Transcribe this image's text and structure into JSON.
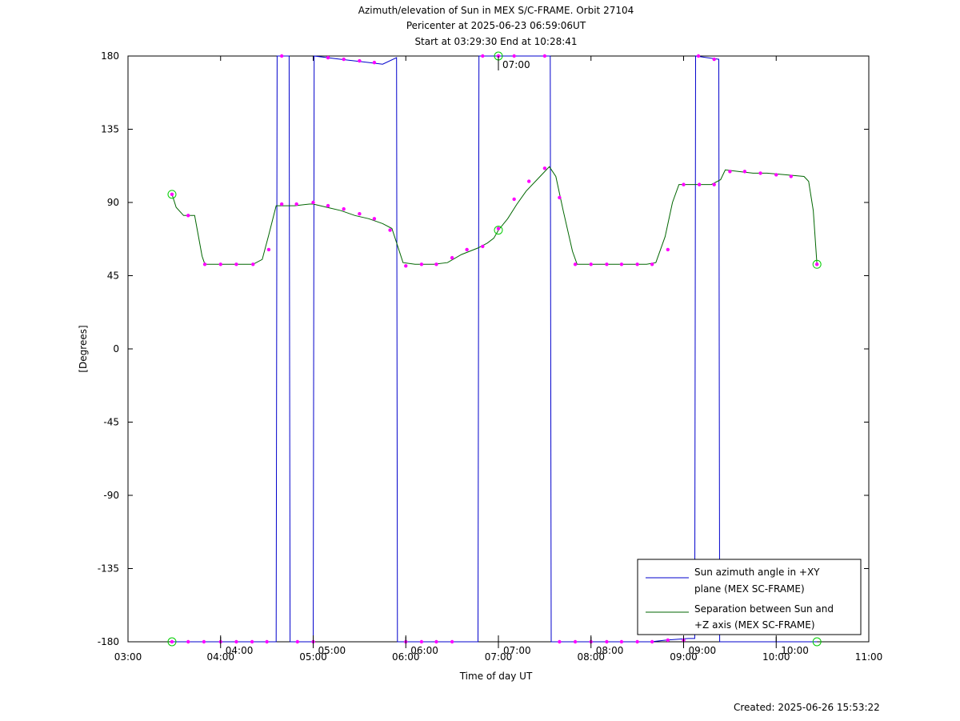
{
  "chart_data": {
    "type": "line",
    "title_lines": [
      "Azimuth/elevation of Sun in MEX S/C-FRAME.  Orbit 27104",
      "Pericenter at 2025-06-23 06:59:06UT",
      "Start at 03:29:30 End at 10:28:41"
    ],
    "xlabel": "Time of day UT",
    "ylabel": "[Degrees]",
    "x_range_hours": [
      3.0,
      11.0
    ],
    "y_range": [
      -180,
      180
    ],
    "x_tick_labels": [
      "03:00",
      "04:00",
      "05:00",
      "06:00",
      "07:00",
      "08:00",
      "09:00",
      "10:00",
      "11:00"
    ],
    "y_ticks": [
      180,
      135,
      90,
      45,
      0,
      -45,
      -90,
      -135,
      -180
    ],
    "hour_marks": [
      "04:00",
      "05:00",
      "06:00",
      "07:00",
      "08:00",
      "09:00",
      "10:00"
    ],
    "legend_position": "bottom-right",
    "colors": {
      "azimuth": "#0000cc",
      "separation": "#006600",
      "markers": "#ff00ff",
      "endpoints": "#00cc00"
    },
    "series": [
      {
        "name": "Sun azimuth angle in +XY\nplane (MEX SC-FRAME)",
        "points": [
          [
            3.475,
            -180
          ],
          [
            3.65,
            -180
          ],
          [
            3.8,
            -180
          ],
          [
            4.0,
            -180
          ],
          [
            4.2,
            -180
          ],
          [
            4.35,
            -180
          ],
          [
            4.5,
            -180
          ],
          [
            4.6,
            -180
          ],
          [
            4.61,
            180
          ],
          [
            4.74,
            180
          ],
          [
            4.75,
            -180
          ],
          [
            4.88,
            -180
          ],
          [
            5.0,
            -180
          ],
          [
            5.01,
            180
          ],
          [
            5.15,
            179
          ],
          [
            5.3,
            178
          ],
          [
            5.45,
            177
          ],
          [
            5.6,
            176
          ],
          [
            5.75,
            175
          ],
          [
            5.9,
            179
          ],
          [
            5.91,
            -180
          ],
          [
            6.1,
            -180
          ],
          [
            6.25,
            -180
          ],
          [
            6.4,
            -180
          ],
          [
            6.55,
            -180
          ],
          [
            6.78,
            -180
          ],
          [
            6.79,
            180
          ],
          [
            7.0,
            180
          ],
          [
            7.15,
            180
          ],
          [
            7.3,
            180
          ],
          [
            7.56,
            180
          ],
          [
            7.57,
            -180
          ],
          [
            7.75,
            -180
          ],
          [
            7.9,
            -180
          ],
          [
            8.05,
            -180
          ],
          [
            8.2,
            -180
          ],
          [
            8.35,
            -180
          ],
          [
            8.5,
            -180
          ],
          [
            8.65,
            -180
          ],
          [
            8.8,
            -179
          ],
          [
            9.05,
            -178
          ],
          [
            9.12,
            -178
          ],
          [
            9.13,
            180
          ],
          [
            9.25,
            179
          ],
          [
            9.38,
            178
          ],
          [
            9.39,
            -180
          ],
          [
            10.0,
            -180
          ],
          [
            10.44,
            -180
          ]
        ]
      },
      {
        "name": "Separation between Sun and\n+Z axis (MEX SC-FRAME)",
        "points": [
          [
            3.475,
            95
          ],
          [
            3.52,
            87
          ],
          [
            3.6,
            82
          ],
          [
            3.72,
            82
          ],
          [
            3.8,
            57
          ],
          [
            3.83,
            52
          ],
          [
            4.0,
            52
          ],
          [
            4.2,
            52
          ],
          [
            4.35,
            52
          ],
          [
            4.45,
            55
          ],
          [
            4.52,
            70
          ],
          [
            4.6,
            88
          ],
          [
            4.8,
            88
          ],
          [
            4.96,
            89
          ],
          [
            5.0,
            89
          ],
          [
            5.15,
            87
          ],
          [
            5.3,
            85
          ],
          [
            5.45,
            82
          ],
          [
            5.6,
            80
          ],
          [
            5.75,
            77
          ],
          [
            5.85,
            74
          ],
          [
            5.97,
            53
          ],
          [
            6.1,
            52
          ],
          [
            6.3,
            52
          ],
          [
            6.45,
            53
          ],
          [
            6.6,
            58
          ],
          [
            6.78,
            62
          ],
          [
            6.88,
            65
          ],
          [
            6.95,
            68
          ],
          [
            7.0,
            73
          ],
          [
            7.1,
            80
          ],
          [
            7.2,
            89
          ],
          [
            7.3,
            97
          ],
          [
            7.45,
            106
          ],
          [
            7.55,
            112
          ],
          [
            7.62,
            106
          ],
          [
            7.7,
            85
          ],
          [
            7.8,
            60
          ],
          [
            7.85,
            52
          ],
          [
            8.0,
            52
          ],
          [
            8.2,
            52
          ],
          [
            8.4,
            52
          ],
          [
            8.6,
            52
          ],
          [
            8.7,
            53
          ],
          [
            8.8,
            69
          ],
          [
            8.88,
            90
          ],
          [
            8.95,
            101
          ],
          [
            9.1,
            101
          ],
          [
            9.3,
            101
          ],
          [
            9.4,
            104
          ],
          [
            9.45,
            110
          ],
          [
            9.6,
            109
          ],
          [
            9.75,
            108
          ],
          [
            9.9,
            108
          ],
          [
            10.1,
            107
          ],
          [
            10.3,
            106
          ],
          [
            10.35,
            103
          ],
          [
            10.4,
            85
          ],
          [
            10.44,
            52
          ]
        ],
        "markers": [
          [
            3.475,
            95
          ],
          [
            3.65,
            82
          ],
          [
            3.83,
            52
          ],
          [
            4.0,
            52
          ],
          [
            4.17,
            52
          ],
          [
            4.35,
            52
          ],
          [
            4.52,
            61
          ],
          [
            4.66,
            89
          ],
          [
            4.82,
            89
          ],
          [
            5.0,
            90
          ],
          [
            5.16,
            88
          ],
          [
            5.33,
            86
          ],
          [
            5.5,
            83
          ],
          [
            5.66,
            80
          ],
          [
            5.83,
            73
          ],
          [
            6.0,
            51
          ],
          [
            6.17,
            52
          ],
          [
            6.33,
            52
          ],
          [
            6.5,
            56
          ],
          [
            6.66,
            61
          ],
          [
            6.83,
            63
          ],
          [
            7.0,
            74
          ],
          [
            7.17,
            92
          ],
          [
            7.33,
            103
          ],
          [
            7.5,
            111
          ],
          [
            7.66,
            93
          ],
          [
            7.83,
            52
          ],
          [
            8.0,
            52
          ],
          [
            8.17,
            52
          ],
          [
            8.33,
            52
          ],
          [
            8.5,
            52
          ],
          [
            8.66,
            52
          ],
          [
            8.83,
            61
          ],
          [
            9.0,
            101
          ],
          [
            9.17,
            101
          ],
          [
            9.33,
            101
          ],
          [
            9.5,
            109
          ],
          [
            9.66,
            109
          ],
          [
            9.83,
            108
          ],
          [
            10.0,
            107
          ],
          [
            10.16,
            106
          ],
          [
            10.44,
            52
          ]
        ]
      }
    ],
    "azimuth_markers": [
      [
        3.475,
        -180
      ],
      [
        3.65,
        -180
      ],
      [
        3.82,
        -180
      ],
      [
        4.0,
        -180
      ],
      [
        4.17,
        -180
      ],
      [
        4.34,
        -180
      ],
      [
        4.5,
        -180
      ],
      [
        4.66,
        180
      ],
      [
        4.83,
        -180
      ],
      [
        5.0,
        -180
      ],
      [
        5.16,
        179
      ],
      [
        5.33,
        178
      ],
      [
        5.5,
        177
      ],
      [
        5.66,
        176
      ],
      [
        6.0,
        -180
      ],
      [
        6.17,
        -180
      ],
      [
        6.33,
        -180
      ],
      [
        6.5,
        -180
      ],
      [
        6.83,
        180
      ],
      [
        7.0,
        180
      ],
      [
        7.17,
        180
      ],
      [
        7.5,
        180
      ],
      [
        7.66,
        -180
      ],
      [
        7.83,
        -180
      ],
      [
        8.0,
        -180
      ],
      [
        8.17,
        -180
      ],
      [
        8.33,
        -180
      ],
      [
        8.5,
        -180
      ],
      [
        8.66,
        -180
      ],
      [
        8.83,
        -179
      ],
      [
        9.0,
        -179
      ],
      [
        9.16,
        180
      ],
      [
        9.33,
        178
      ]
    ],
    "endpoints": [
      [
        3.475,
        -180
      ],
      [
        3.475,
        95
      ],
      [
        7.0,
        180
      ],
      [
        7.0,
        73
      ],
      [
        10.44,
        -180
      ],
      [
        10.44,
        52
      ]
    ]
  },
  "footer": {
    "created": "Created: 2025-06-26 15:53:22"
  }
}
